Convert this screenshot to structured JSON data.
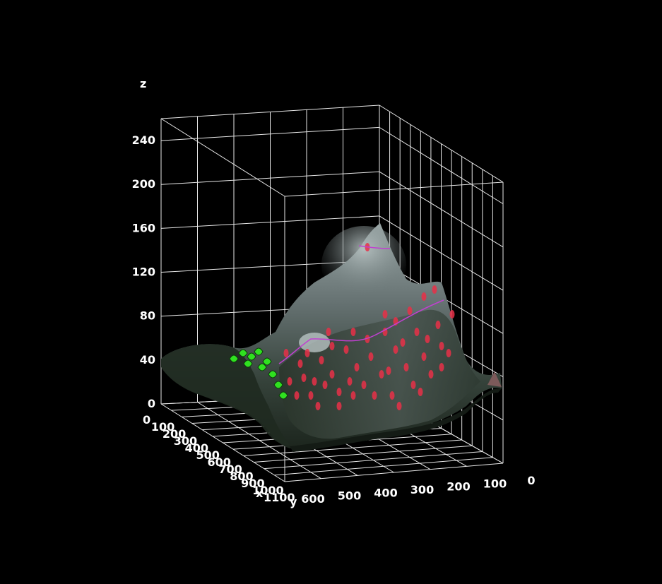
{
  "chart_data": {
    "type": "surface",
    "title": "",
    "axes": {
      "x": {
        "label": "x",
        "ticks": [
          0,
          100,
          200,
          300,
          400,
          500,
          600,
          700,
          800,
          900,
          1000,
          1100
        ]
      },
      "y": {
        "label": "y",
        "ticks": [
          600,
          500,
          400,
          300,
          200,
          100,
          0
        ]
      },
      "z": {
        "label": "z",
        "ticks": [
          0,
          40,
          80,
          120,
          160,
          200,
          240
        ]
      }
    },
    "zlim": [
      0,
      260
    ],
    "grid": true,
    "background": "#000000",
    "colors": {
      "surface_dark": "#1f2a20",
      "surface_light": "#8a9696",
      "red_marks": "#e83048",
      "contour_line": "#c040d0",
      "green_text": "#30e020"
    }
  }
}
